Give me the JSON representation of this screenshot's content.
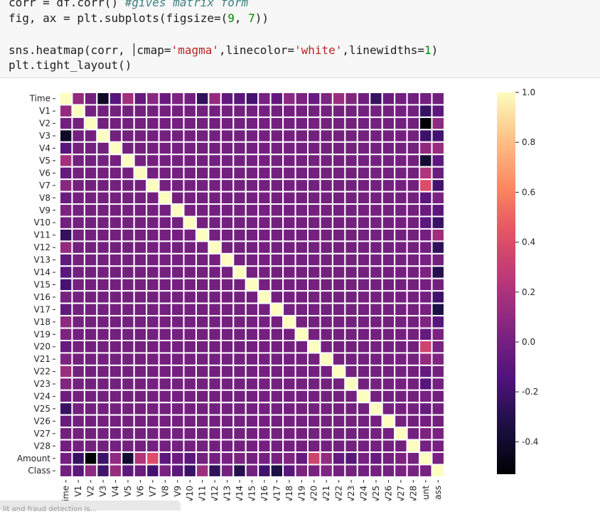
{
  "code": {
    "line1": {
      "a": "corr = df.corr() ",
      "comment": "#gives matrix form"
    },
    "line2": {
      "a": "fig, ax = plt.subplots(figsize=(",
      "n1": "9",
      "b": ", ",
      "n2": "7",
      "c": "))"
    },
    "line3": {
      "a": "sns.heatmap(corr, ",
      "b": "cmap=",
      "s1": "'magma'",
      "c": ",linecolor=",
      "s2": "'white'",
      "d": ",linewidths=",
      "n1": "1",
      "e": ")"
    },
    "line4": {
      "a": "plt.tight_layout()"
    }
  },
  "status_snippet": "lit and fraud detection is...",
  "chart_data": {
    "type": "heatmap",
    "colormap": "magma",
    "linecolor": "#ffffff",
    "labels": [
      "Time",
      "V1",
      "V2",
      "V3",
      "V4",
      "V5",
      "V6",
      "V7",
      "V8",
      "V9",
      "V10",
      "V11",
      "V12",
      "V13",
      "V14",
      "V15",
      "V16",
      "V17",
      "V18",
      "V19",
      "V20",
      "V21",
      "V22",
      "V23",
      "V24",
      "V25",
      "V26",
      "V27",
      "V28",
      "Amount",
      "Class"
    ],
    "x_tick_labels": [
      "ime",
      "V1",
      "V2",
      "V3",
      "V4",
      "V5",
      "V6",
      "V7",
      "V8",
      "V9",
      "V10",
      "V11",
      "V12",
      "V13",
      "V14",
      "V15",
      "V16",
      "V17",
      "V18",
      "V19",
      "V20",
      "V21",
      "V22",
      "V23",
      "V24",
      "V25",
      "V26",
      "V27",
      "V28",
      "mount",
      "Class"
    ],
    "vmin": -0.53,
    "vmax": 1.0,
    "colorbar_ticks": [
      "-0.4",
      "-0.2",
      "0.0",
      "0.2",
      "0.4",
      "0.6",
      "0.8",
      "1.0"
    ],
    "colorbar_tick_values": [
      -0.4,
      -0.2,
      0.0,
      0.2,
      0.4,
      0.6,
      0.8,
      1.0
    ],
    "correlations_with_time": [
      1.0,
      0.12,
      -0.01,
      -0.42,
      -0.11,
      0.17,
      -0.06,
      0.08,
      -0.04,
      0.03,
      -0.01,
      -0.25,
      0.12,
      -0.07,
      -0.1,
      -0.18,
      0.01,
      -0.07,
      0.09,
      0.03,
      -0.05,
      0.04,
      0.14,
      0.05,
      -0.02,
      -0.23,
      -0.04,
      -0.01,
      -0.01,
      -0.01,
      -0.01
    ],
    "correlations_with_amount": [
      -0.01,
      -0.23,
      -0.53,
      -0.21,
      0.1,
      -0.39,
      0.22,
      0.4,
      -0.1,
      -0.04,
      -0.1,
      0.0,
      -0.01,
      0.01,
      0.03,
      -0.0,
      -0.0,
      0.01,
      0.04,
      -0.06,
      0.34,
      0.11,
      -0.06,
      -0.11,
      0.01,
      -0.05,
      -0.0,
      0.03,
      0.01,
      1.0,
      0.01
    ],
    "correlations_with_class": [
      -0.01,
      -0.1,
      0.09,
      -0.19,
      0.13,
      -0.09,
      -0.04,
      -0.19,
      0.02,
      -0.1,
      -0.22,
      0.15,
      -0.26,
      -0.0,
      -0.3,
      -0.0,
      -0.2,
      -0.33,
      -0.11,
      0.03,
      0.02,
      0.04,
      0.0,
      -0.0,
      -0.01,
      0.0,
      0.0,
      0.02,
      0.01,
      0.01,
      1.0
    ]
  }
}
